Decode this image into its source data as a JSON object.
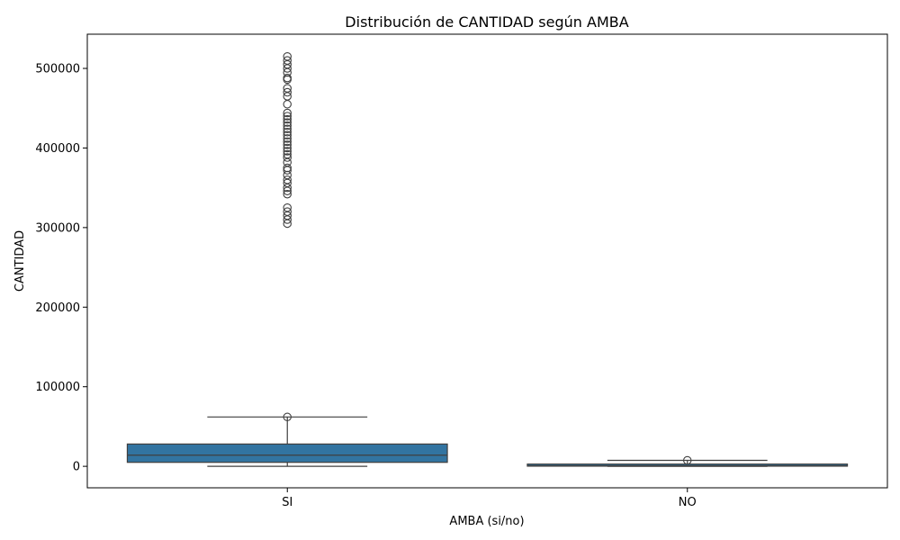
{
  "chart_data": {
    "type": "box",
    "title": "Distribución de CANTIDAD según AMBA",
    "xlabel": "AMBA (si/no)",
    "ylabel": "CANTIDAD",
    "ylim": [
      -27000,
      543000
    ],
    "yticks": [
      0,
      100000,
      200000,
      300000,
      400000,
      500000
    ],
    "ytick_labels": [
      "0",
      "100000",
      "200000",
      "300000",
      "400000",
      "500000"
    ],
    "categories": [
      "SI",
      "NO"
    ],
    "grid": false,
    "box_color": "#3274a1",
    "line_color": "#3f3f3f",
    "boxes": [
      {
        "category": "SI",
        "whisker_low": 0,
        "q1": 5000,
        "median": 14000,
        "q3": 28000,
        "whisker_high": 62000,
        "outliers_dense": [
          [
            62000,
            300000
          ]
        ],
        "outliers": [
          305000,
          310000,
          315000,
          320000,
          325000,
          342000,
          346000,
          350000,
          356000,
          360000,
          366000,
          372000,
          375000,
          382000,
          388000,
          392000,
          396000,
          400000,
          404000,
          408000,
          412000,
          416000,
          420000,
          424000,
          428000,
          432000,
          436000,
          440000,
          444000,
          455000,
          465000,
          470000,
          475000,
          486000,
          488000,
          495000,
          500000,
          505000,
          510000,
          515000
        ]
      },
      {
        "category": "NO",
        "whisker_low": 0,
        "q1": 200,
        "median": 800,
        "q3": 2800,
        "whisker_high": 7500,
        "outliers_dense": [
          [
            7500,
            34000
          ]
        ],
        "outliers": []
      }
    ]
  }
}
